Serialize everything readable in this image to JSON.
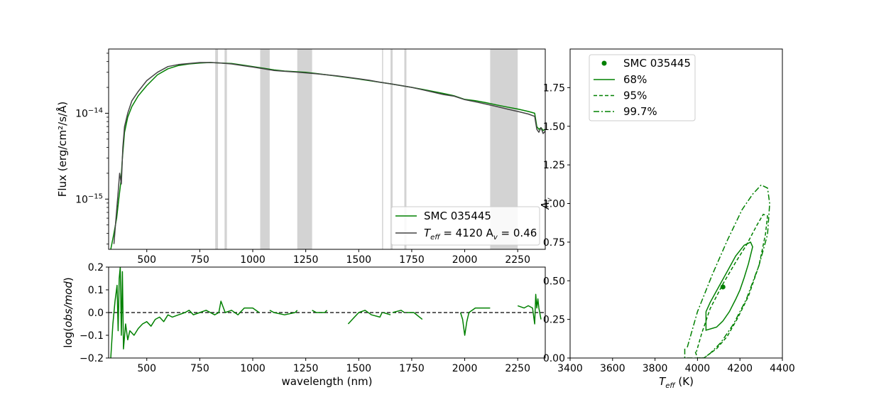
{
  "chart_data": [
    {
      "id": "spectrum",
      "type": "line",
      "xlabel": "",
      "ylabel": "Flux (erg/cm²/s/Å)",
      "xlim": [
        320,
        2380
      ],
      "ylim": [
        2.6e-16,
        5.6e-14
      ],
      "yscale": "log",
      "yticks": [
        {
          "value": 1e-14,
          "base": "10",
          "exp": "−14"
        },
        {
          "value": 1e-15,
          "base": "10",
          "exp": "−15"
        }
      ],
      "xticks": [
        500,
        750,
        1000,
        1250,
        1500,
        1750,
        2000,
        2250
      ],
      "xtick_labels": [
        "500",
        "750",
        "1000",
        "1250",
        "1500",
        "1750",
        "2000",
        "2250"
      ],
      "masked_regions": [
        [
          823,
          836
        ],
        [
          867,
          878
        ],
        [
          1035,
          1080
        ],
        [
          1210,
          1280
        ],
        [
          1610,
          1615
        ],
        [
          1650,
          1660
        ],
        [
          1715,
          1725
        ],
        [
          2120,
          2250
        ]
      ],
      "legend_position": "lower-right",
      "series": [
        {
          "name": "SMC 035445",
          "color": "#008000",
          "x": [
            330,
            345,
            358,
            368,
            378,
            385,
            395,
            410,
            430,
            460,
            500,
            550,
            600,
            650,
            700,
            750,
            800,
            850,
            900,
            950,
            1000,
            1050,
            1100,
            1150,
            1200,
            1250,
            1300,
            1350,
            1400,
            1450,
            1500,
            1550,
            1600,
            1650,
            1700,
            1750,
            1800,
            1900,
            1950,
            2000,
            2050,
            2100,
            2150,
            2200,
            2250,
            2300,
            2330,
            2340,
            2350,
            2360,
            2370,
            2380
          ],
          "y": [
            2.6e-16,
            4e-16,
            6e-16,
            1e-15,
            1.6e-15,
            3e-15,
            6e-15,
            9e-15,
            1.2e-14,
            1.6e-14,
            2.1e-14,
            2.8e-14,
            3.3e-14,
            3.6e-14,
            3.75e-14,
            3.85e-14,
            3.9e-14,
            3.85e-14,
            3.8e-14,
            3.65e-14,
            3.5e-14,
            3.35e-14,
            3.2e-14,
            3.1e-14,
            3.05e-14,
            3e-14,
            2.9e-14,
            2.8e-14,
            2.7e-14,
            2.6e-14,
            2.5e-14,
            2.4e-14,
            2.3e-14,
            2.2e-14,
            2.1e-14,
            2e-14,
            1.9e-14,
            1.7e-14,
            1.6e-14,
            1.45e-14,
            1.4e-14,
            1.33e-14,
            1.25e-14,
            1.18e-14,
            1.12e-14,
            1.05e-14,
            1e-14,
            7e-15,
            6.5e-15,
            6.8e-15,
            6.3e-15,
            6.5e-15
          ]
        },
        {
          "name": "T_eff = 4120 A_v = 0.46",
          "legend_main": "T",
          "legend_sub": "eff",
          "legend_mid": " = 4120 A",
          "legend_sub2": "v",
          "legend_end": " = 0.46",
          "color": "#444444",
          "x": [
            345,
            355,
            365,
            372,
            380,
            387,
            395,
            410,
            430,
            460,
            500,
            550,
            600,
            650,
            700,
            750,
            800,
            850,
            900,
            950,
            1000,
            1050,
            1100,
            1150,
            1200,
            1250,
            1300,
            1350,
            1400,
            1450,
            1500,
            1550,
            1600,
            1650,
            1700,
            1750,
            1800,
            1900,
            1950,
            2000,
            2050,
            2100,
            2150,
            2200,
            2250,
            2300,
            2330,
            2340,
            2350,
            2360,
            2370,
            2380
          ],
          "y": [
            3e-16,
            6e-16,
            1.2e-15,
            2e-15,
            1.5e-15,
            4e-15,
            7e-15,
            1e-14,
            1.4e-14,
            1.8e-14,
            2.4e-14,
            3e-14,
            3.5e-14,
            3.7e-14,
            3.8e-14,
            3.9e-14,
            3.9e-14,
            3.85e-14,
            3.75e-14,
            3.6e-14,
            3.45e-14,
            3.3e-14,
            3.15e-14,
            3.08e-14,
            3.02e-14,
            2.95e-14,
            2.88e-14,
            2.8e-14,
            2.72e-14,
            2.62e-14,
            2.52e-14,
            2.42e-14,
            2.3e-14,
            2.2e-14,
            2.1e-14,
            2e-14,
            1.88e-14,
            1.65e-14,
            1.58e-14,
            1.44e-14,
            1.36e-14,
            1.28e-14,
            1.2e-14,
            1.12e-14,
            1.05e-14,
            9.8e-15,
            9.2e-15,
            6.5e-15,
            6e-15,
            6.8e-15,
            5.8e-15,
            6.2e-15
          ]
        }
      ]
    },
    {
      "id": "residual",
      "type": "line",
      "xlabel": "wavelength (nm)",
      "ylabel_parts": {
        "pre": "log(",
        "it": "obs/mod",
        "post": ")"
      },
      "xlim": [
        320,
        2380
      ],
      "ylim": [
        -0.2,
        0.2
      ],
      "xticks": [
        500,
        750,
        1000,
        1250,
        1500,
        1750,
        2000,
        2250
      ],
      "xtick_labels": [
        "500",
        "750",
        "1000",
        "1250",
        "1500",
        "1750",
        "2000",
        "2250"
      ],
      "yticks": [
        -0.2,
        -0.1,
        0.0,
        0.1,
        0.2
      ],
      "ytick_labels": [
        "−0.2",
        "−0.1",
        "0.0",
        "0.1",
        "0.2"
      ],
      "reference_line": 0,
      "series": [
        {
          "name": "",
          "color": "#008000",
          "segments": [
            {
              "x": [
                330,
                340,
                350,
                360,
                365,
                370,
                375,
                380,
                385,
                390,
                400,
                410,
                420,
                440,
                460,
                480,
                500,
                520,
                540,
                560,
                580,
                600,
                620,
                650,
                680,
                700,
                720,
                750,
                780,
                800,
                820,
                840,
                850,
                870,
                900,
                930,
                960,
                1000,
                1030
              ],
              "y": [
                -0.2,
                -0.05,
                0.05,
                0.12,
                -0.08,
                0.15,
                0.2,
                -0.1,
                0.18,
                -0.16,
                -0.05,
                -0.12,
                -0.08,
                -0.1,
                -0.07,
                -0.05,
                -0.04,
                -0.06,
                -0.03,
                -0.02,
                -0.04,
                -0.01,
                -0.02,
                -0.01,
                0.0,
                0.01,
                -0.01,
                0.0,
                0.01,
                0.0,
                -0.01,
                0.0,
                0.05,
                0.0,
                0.01,
                -0.01,
                0.02,
                0.02,
                0.0
              ]
            },
            {
              "x": [
                1080,
                1100,
                1150,
                1200,
                1210
              ],
              "y": [
                0.01,
                0.0,
                -0.01,
                0.0,
                0.01
              ]
            },
            {
              "x": [
                1280,
                1300,
                1340,
                1350
              ],
              "y": [
                0.01,
                0.0,
                0.0,
                0.01
              ]
            },
            {
              "x": [
                1450,
                1480,
                1500,
                1530,
                1560,
                1600,
                1610
              ],
              "y": [
                -0.05,
                -0.02,
                0.0,
                0.01,
                -0.01,
                -0.02,
                0.0
              ]
            },
            {
              "x": [
                1615,
                1650
              ],
              "y": [
                0.0,
                -0.01
              ]
            },
            {
              "x": [
                1660,
                1700,
                1715
              ],
              "y": [
                0.0,
                0.01,
                0.0
              ]
            },
            {
              "x": [
                1725,
                1760,
                1800
              ],
              "y": [
                0.0,
                0.0,
                -0.03
              ]
            },
            {
              "x": [
                1980,
                1990,
                2000,
                2010,
                2020,
                2050,
                2100,
                2120
              ],
              "y": [
                0.0,
                -0.03,
                -0.1,
                -0.04,
                0.0,
                0.02,
                0.02,
                0.02
              ]
            },
            {
              "x": [
                2250,
                2280,
                2300,
                2320,
                2330,
                2335,
                2340,
                2345,
                2350,
                2360
              ],
              "y": [
                0.03,
                0.02,
                0.03,
                0.02,
                -0.05,
                0.08,
                0.02,
                0.06,
                0.02,
                -0.03
              ]
            }
          ]
        }
      ]
    },
    {
      "id": "contours",
      "type": "scatter",
      "xlabel_parts": {
        "main": "T",
        "sub": "eff",
        "post": " (K)"
      },
      "ylabel_parts": {
        "main": "A",
        "sub": "v"
      },
      "xlim": [
        3400,
        4400
      ],
      "ylim": [
        0.0,
        2.0
      ],
      "xticks": [
        3400,
        3600,
        3800,
        4000,
        4200,
        4400
      ],
      "xtick_labels": [
        "3400",
        "3600",
        "3800",
        "4000",
        "4200",
        "4400"
      ],
      "yticks": [
        0.0,
        0.25,
        0.5,
        0.75,
        1.0,
        1.25,
        1.5,
        1.75
      ],
      "ytick_labels": [
        "0.00",
        "0.25",
        "0.50",
        "0.75",
        "1.00",
        "1.25",
        "1.50",
        "1.75"
      ],
      "legend_position": "top-left",
      "point": {
        "name": "SMC 035445",
        "x": 4120,
        "y": 0.46,
        "color": "#008000"
      },
      "contours": [
        {
          "name": "68%",
          "style": "solid",
          "color": "#008000",
          "x": [
            4040,
            4040,
            4090,
            4120,
            4150,
            4180,
            4200,
            4220,
            4240,
            4260,
            4250,
            4220,
            4180,
            4140,
            4100,
            4060,
            4040
          ],
          "y": [
            0.3,
            0.18,
            0.2,
            0.24,
            0.3,
            0.38,
            0.44,
            0.52,
            0.61,
            0.72,
            0.75,
            0.73,
            0.66,
            0.56,
            0.46,
            0.36,
            0.3
          ]
        },
        {
          "name": "95%",
          "style": "dashed",
          "color": "#008000",
          "x": [
            3990,
            4000,
            4030,
            4090,
            4140,
            4190,
            4240,
            4290,
            4320,
            4330,
            4310,
            4280,
            4230,
            4180,
            4120,
            4060,
            4020,
            3995
          ],
          "y": [
            0.04,
            0.0,
            0.0,
            0.06,
            0.14,
            0.26,
            0.4,
            0.6,
            0.8,
            0.92,
            0.93,
            0.86,
            0.73,
            0.62,
            0.48,
            0.32,
            0.16,
            0.04
          ]
        },
        {
          "name": "99.7%",
          "style": "dashdot",
          "color": "#008000",
          "x": [
            3940,
            3940,
            4030,
            4060,
            4110,
            4170,
            4230,
            4290,
            4330,
            4340,
            4330,
            4300,
            4260,
            4210,
            4140,
            4070,
            4000,
            3950
          ],
          "y": [
            0.06,
            0.0,
            0.0,
            0.03,
            0.1,
            0.22,
            0.38,
            0.6,
            0.8,
            1.0,
            1.1,
            1.12,
            1.06,
            0.96,
            0.76,
            0.54,
            0.3,
            0.06
          ]
        }
      ]
    }
  ]
}
